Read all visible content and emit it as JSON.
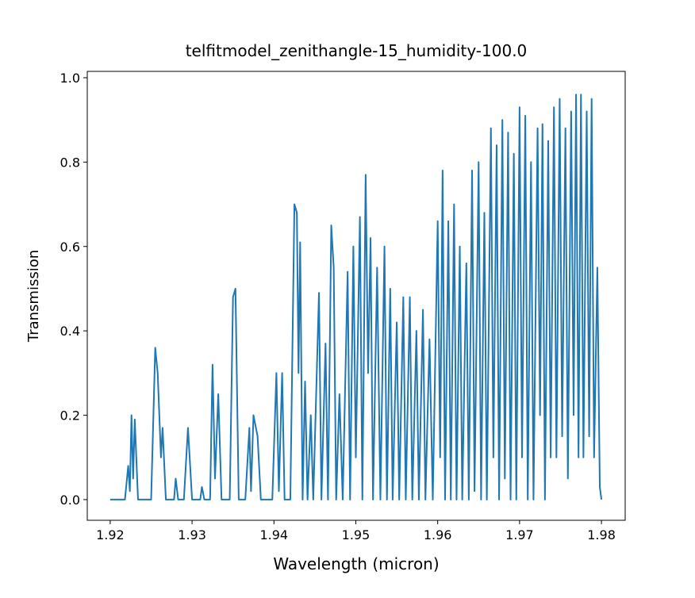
{
  "chart_data": {
    "type": "line",
    "title": "telfitmodel_zenithangle-15_humidity-100.0",
    "xlabel": "Wavelength (micron)",
    "ylabel": "Transmission",
    "color": "#1f77b4",
    "xlim": [
      1.9172,
      1.9829
    ],
    "ylim": [
      -0.049,
      1.015
    ],
    "xticks": [
      1.92,
      1.93,
      1.94,
      1.95,
      1.96,
      1.97,
      1.98
    ],
    "yticks": [
      {
        "value": 0,
        "label": "0.0"
      },
      0.2,
      0.4,
      0.6,
      0.8,
      {
        "value": 1,
        "label": "1.0"
      }
    ],
    "x": [
      1.92,
      1.9218,
      1.9222,
      1.9224,
      1.9226,
      1.9228,
      1.923,
      1.9234,
      1.925,
      1.9255,
      1.9258,
      1.9262,
      1.9264,
      1.9268,
      1.9278,
      1.928,
      1.9283,
      1.929,
      1.9295,
      1.93,
      1.931,
      1.9312,
      1.9315,
      1.9322,
      1.9325,
      1.9328,
      1.9332,
      1.9336,
      1.9346,
      1.935,
      1.9353,
      1.9357,
      1.9365,
      1.937,
      1.9372,
      1.9375,
      1.938,
      1.9384,
      1.9398,
      1.9403,
      1.9406,
      1.941,
      1.9413,
      1.942,
      1.9425,
      1.9428,
      1.943,
      1.9432,
      1.9435,
      1.9438,
      1.9441,
      1.9445,
      1.9448,
      1.9455,
      1.9458,
      1.9463,
      1.9466,
      1.947,
      1.9473,
      1.9476,
      1.948,
      1.9484,
      1.949,
      1.9493,
      1.9497,
      1.95,
      1.9505,
      1.9508,
      1.9512,
      1.9515,
      1.9518,
      1.9521,
      1.9526,
      1.953,
      1.9535,
      1.9538,
      1.9542,
      1.9545,
      1.955,
      1.9553,
      1.9558,
      1.9561,
      1.9566,
      1.9569,
      1.9574,
      1.9577,
      1.9582,
      1.9585,
      1.959,
      1.9594,
      1.96,
      1.9603,
      1.9606,
      1.9609,
      1.9613,
      1.9616,
      1.962,
      1.9623,
      1.9627,
      1.963,
      1.9635,
      1.9638,
      1.9642,
      1.9645,
      1.965,
      1.9653,
      1.9657,
      1.966,
      1.9665,
      1.9668,
      1.9672,
      1.9675,
      1.9679,
      1.9682,
      1.9686,
      1.9689,
      1.9693,
      1.9696,
      1.97,
      1.9703,
      1.9707,
      1.971,
      1.9714,
      1.9717,
      1.9722,
      1.9725,
      1.9728,
      1.9731,
      1.9735,
      1.9738,
      1.9742,
      1.9745,
      1.9749,
      1.9752,
      1.9756,
      1.9759,
      1.9763,
      1.9766,
      1.9769,
      1.9772,
      1.9775,
      1.9778,
      1.9782,
      1.9785,
      1.9788,
      1.9791,
      1.9795,
      1.9798,
      1.98
    ],
    "values": [
      0,
      0,
      0.08,
      0.02,
      0.2,
      0.05,
      0.19,
      0,
      0,
      0.36,
      0.3,
      0.1,
      0.17,
      0,
      0,
      0.05,
      0,
      0,
      0.17,
      0,
      0,
      0.03,
      0,
      0,
      0.32,
      0.05,
      0.25,
      0,
      0,
      0.48,
      0.5,
      0,
      0,
      0.17,
      0.02,
      0.2,
      0.15,
      0,
      0,
      0.3,
      0.02,
      0.3,
      0,
      0,
      0.7,
      0.68,
      0.3,
      0.61,
      0,
      0.28,
      0,
      0.2,
      0,
      0.49,
      0,
      0.37,
      0,
      0.65,
      0.55,
      0,
      0.25,
      0,
      0.54,
      0,
      0.6,
      0.1,
      0.67,
      0,
      0.77,
      0.3,
      0.62,
      0,
      0.55,
      0,
      0.6,
      0,
      0.5,
      0,
      0.42,
      0,
      0.48,
      0,
      0.48,
      0,
      0.4,
      0,
      0.45,
      0,
      0.38,
      0,
      0.66,
      0.1,
      0.78,
      0,
      0.66,
      0,
      0.7,
      0,
      0.6,
      0,
      0.56,
      0,
      0.78,
      0.02,
      0.8,
      0,
      0.68,
      0,
      0.88,
      0.1,
      0.84,
      0,
      0.9,
      0.05,
      0.87,
      0,
      0.82,
      0,
      0.93,
      0.1,
      0.91,
      0,
      0.8,
      0,
      0.88,
      0.2,
      0.89,
      0,
      0.85,
      0.1,
      0.93,
      0.1,
      0.95,
      0.15,
      0.88,
      0.05,
      0.92,
      0.2,
      0.96,
      0.1,
      0.96,
      0.1,
      0.92,
      0.15,
      0.95,
      0.1,
      0.55,
      0.03,
      0
    ]
  }
}
